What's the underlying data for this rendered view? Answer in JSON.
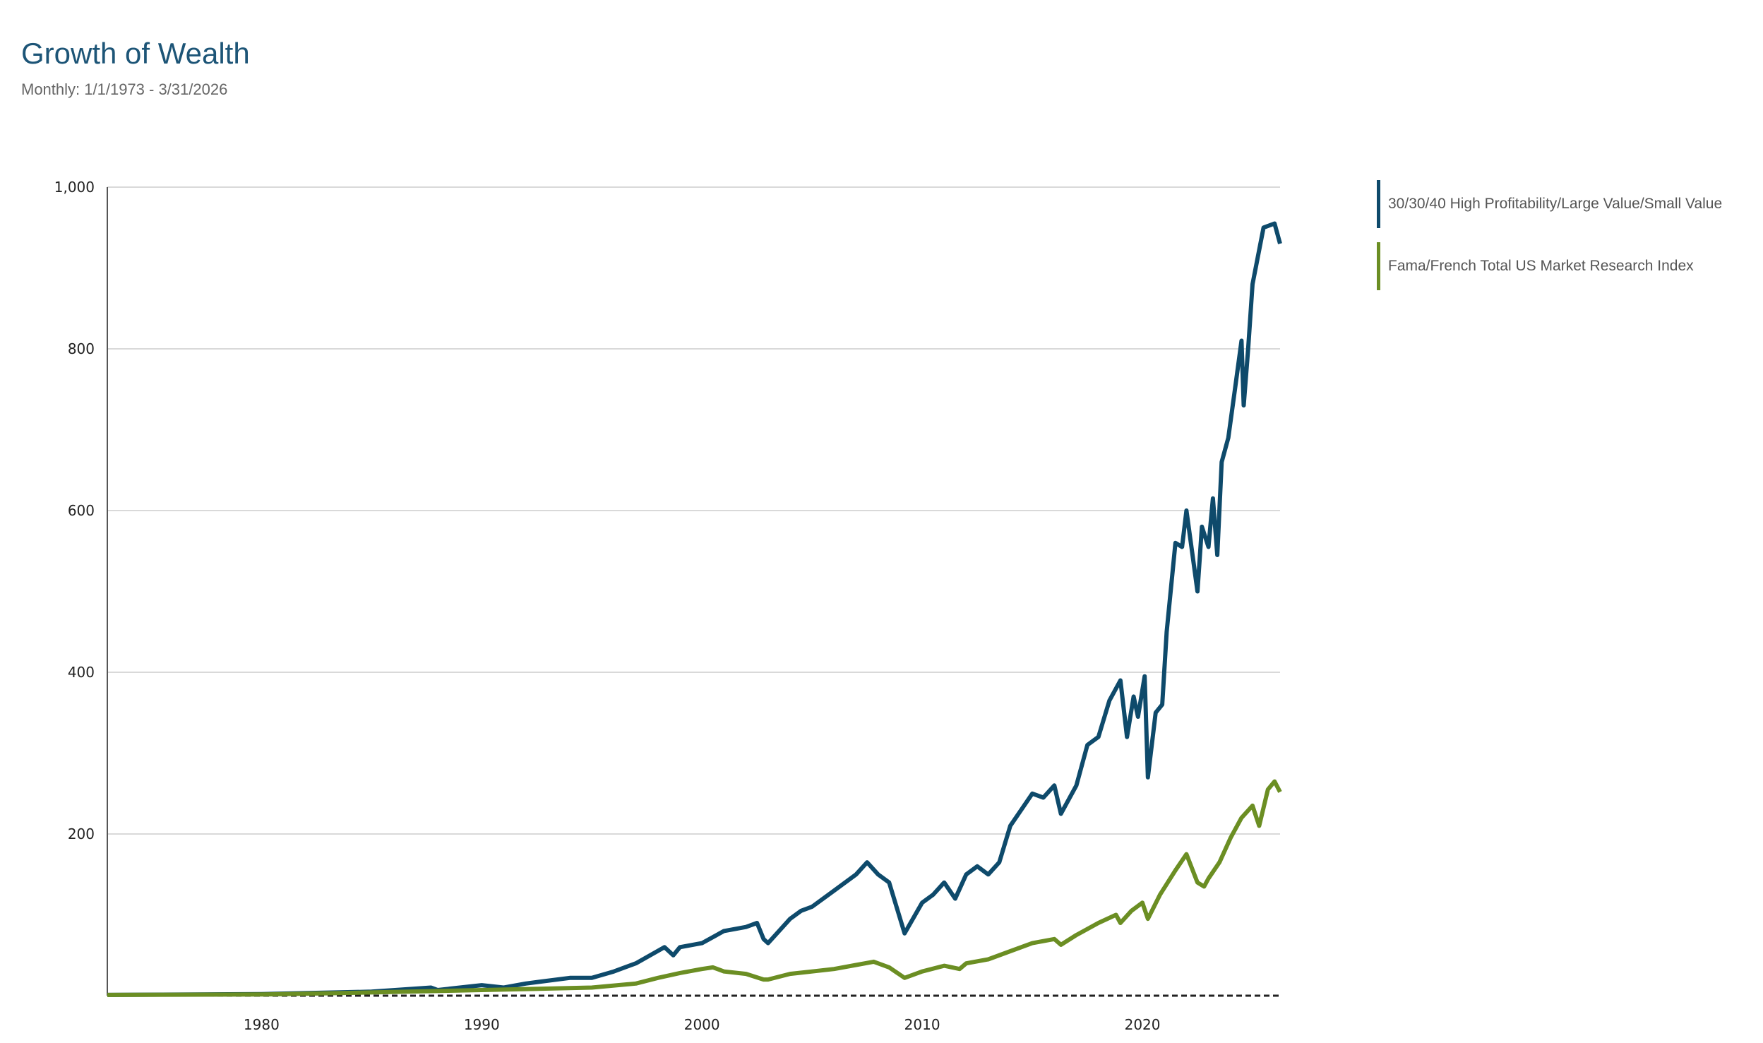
{
  "chart_data": {
    "type": "line",
    "title": "Growth of Wealth",
    "subtitle": "Monthly: 1/1/1973 - 3/31/2026",
    "xlabel": "",
    "ylabel": "",
    "xlim": [
      1973,
      2026.25
    ],
    "ylim": [
      0,
      1000
    ],
    "yticks": [
      200,
      400,
      600,
      800,
      1000
    ],
    "ytick_labels": [
      "200",
      "400",
      "600",
      "800",
      "1,000"
    ],
    "xticks": [
      1980,
      1990,
      2000,
      2010,
      2020
    ],
    "xtick_labels": [
      "1980",
      "1990",
      "2000",
      "2010",
      "2020"
    ],
    "grid": "horizontal",
    "legend_position": "right",
    "baseline": 0,
    "series": [
      {
        "name": "30/30/40 High Profitability/Large Value/Small Value",
        "color": "#0e4a6b",
        "x": [
          1973,
          1980,
          1985,
          1987.7,
          1988,
          1990,
          1991,
          1992,
          1994,
          1995,
          1996,
          1997,
          1998.3,
          1998.7,
          1999,
          2000,
          2001,
          2002,
          2002.5,
          2002.8,
          2003,
          2004,
          2004.5,
          2005,
          2006,
          2007,
          2007.5,
          2008,
          2008.5,
          2009.2,
          2010,
          2010.5,
          2011,
          2011.5,
          2012,
          2012.5,
          2013,
          2013.5,
          2014,
          2014.5,
          2015,
          2015.5,
          2016,
          2016.3,
          2017,
          2017.5,
          2018,
          2018.5,
          2019,
          2019.3,
          2019.6,
          2019.8,
          2020.1,
          2020.25,
          2020.6,
          2020.9,
          2021.1,
          2021.5,
          2021.8,
          2022,
          2022.3,
          2022.5,
          2022.7,
          2023,
          2023.2,
          2023.4,
          2023.6,
          2023.9,
          2024.2,
          2024.5,
          2024.6,
          2024.8,
          2025,
          2025.5,
          2026,
          2026.25
        ],
        "y": [
          1,
          2,
          5,
          10,
          7,
          13,
          10,
          15,
          22,
          22,
          30,
          40,
          60,
          50,
          60,
          65,
          80,
          85,
          90,
          70,
          65,
          95,
          105,
          110,
          130,
          150,
          165,
          150,
          140,
          77,
          115,
          125,
          140,
          120,
          150,
          160,
          150,
          165,
          210,
          230,
          250,
          245,
          260,
          225,
          260,
          310,
          320,
          365,
          390,
          320,
          370,
          345,
          395,
          270,
          350,
          360,
          450,
          560,
          555,
          600,
          540,
          500,
          580,
          555,
          615,
          545,
          660,
          690,
          750,
          810,
          730,
          800,
          880,
          950,
          955,
          930
        ]
      },
      {
        "name": "Fama/French Total US Market Research Index",
        "color": "#6b8e23",
        "x": [
          1973,
          1980,
          1985,
          1990,
          1995,
          1997,
          1998,
          1999,
          2000,
          2000.5,
          2001,
          2002,
          2002.8,
          2003,
          2004,
          2005,
          2006,
          2007,
          2007.8,
          2008.5,
          2009.2,
          2010,
          2011,
          2011.7,
          2012,
          2013,
          2014,
          2015,
          2016,
          2016.3,
          2017,
          2018,
          2018.8,
          2019,
          2019.5,
          2020,
          2020.25,
          2020.8,
          2021.5,
          2022,
          2022.5,
          2022.8,
          2023,
          2023.5,
          2024,
          2024.5,
          2025,
          2025.3,
          2025.7,
          2026,
          2026.25
        ],
        "y": [
          1,
          1.5,
          4,
          7,
          10,
          15,
          22,
          28,
          33,
          35,
          30,
          27,
          20,
          20,
          27,
          30,
          33,
          38,
          42,
          35,
          22,
          30,
          37,
          33,
          40,
          45,
          55,
          65,
          70,
          63,
          75,
          90,
          100,
          90,
          105,
          115,
          95,
          125,
          155,
          175,
          140,
          135,
          145,
          165,
          195,
          220,
          235,
          210,
          255,
          265,
          252
        ]
      }
    ]
  }
}
